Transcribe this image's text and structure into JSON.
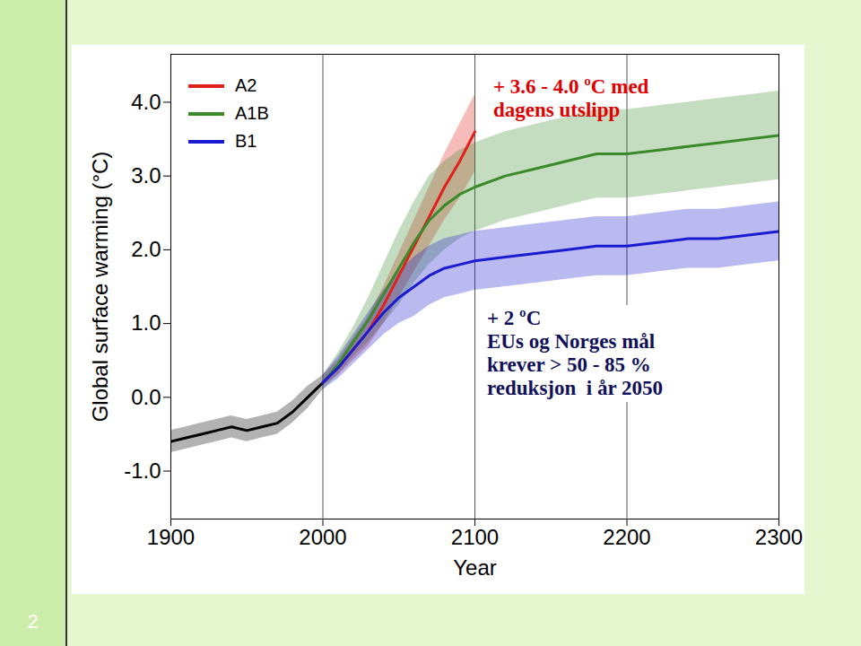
{
  "chart_data": {
    "type": "line",
    "x_label": "Year",
    "y_label": "Global surface warming (°C)",
    "xlim": [
      1900,
      2300
    ],
    "xticks": [
      1900,
      2000,
      2100,
      2200,
      2300
    ],
    "ylim": [
      -1.65,
      4.65
    ],
    "yticks": [
      {
        "value": -1,
        "label": "-1.0"
      },
      {
        "value": 0,
        "label": "0.0"
      },
      {
        "value": 1,
        "label": "1.0"
      },
      {
        "value": 2,
        "label": "2.0"
      },
      {
        "value": 3,
        "label": "3.0"
      },
      {
        "value": 4,
        "label": "4.0"
      }
    ],
    "reference_lines_x": [
      2000,
      2100,
      2200
    ],
    "legend": "top-left",
    "series": [
      {
        "color": "#000000",
        "x": [
          1900,
          1910,
          1920,
          1930,
          1940,
          1950,
          1960,
          1970,
          1980,
          1990,
          2000
        ],
        "values": [
          -0.6,
          -0.55,
          -0.5,
          -0.45,
          -0.4,
          -0.45,
          -0.4,
          -0.35,
          -0.2,
          0.0,
          0.2
        ],
        "lower": [
          -0.75,
          -0.7,
          -0.65,
          -0.6,
          -0.55,
          -0.6,
          -0.55,
          -0.5,
          -0.35,
          -0.15,
          0.1
        ],
        "upper": [
          -0.45,
          -0.4,
          -0.35,
          -0.3,
          -0.25,
          -0.3,
          -0.25,
          -0.2,
          -0.05,
          0.15,
          0.3
        ]
      },
      {
        "name": "A2",
        "color": "#e0201a",
        "x": [
          2000,
          2010,
          2020,
          2030,
          2040,
          2050,
          2060,
          2070,
          2080,
          2090,
          2100
        ],
        "values": [
          0.2,
          0.4,
          0.65,
          0.9,
          1.25,
          1.65,
          2.05,
          2.45,
          2.85,
          3.2,
          3.6
        ],
        "lower": [
          0.15,
          0.3,
          0.5,
          0.7,
          1.0,
          1.35,
          1.7,
          2.05,
          2.4,
          2.7,
          3.05
        ],
        "upper": [
          0.3,
          0.5,
          0.8,
          1.1,
          1.5,
          1.95,
          2.4,
          2.85,
          3.3,
          3.7,
          4.1
        ]
      },
      {
        "name": "A1B",
        "color": "#3a8a2a",
        "x": [
          2000,
          2010,
          2020,
          2030,
          2040,
          2050,
          2060,
          2070,
          2080,
          2090,
          2100,
          2120,
          2140,
          2160,
          2180,
          2200,
          2220,
          2240,
          2260,
          2280,
          2300
        ],
        "values": [
          0.2,
          0.45,
          0.75,
          1.05,
          1.4,
          1.75,
          2.1,
          2.4,
          2.6,
          2.75,
          2.85,
          3.0,
          3.1,
          3.2,
          3.3,
          3.3,
          3.35,
          3.4,
          3.45,
          3.5,
          3.55
        ],
        "lower": [
          0.1,
          0.3,
          0.55,
          0.75,
          1.0,
          1.25,
          1.55,
          1.8,
          2.0,
          2.15,
          2.25,
          2.4,
          2.5,
          2.6,
          2.7,
          2.7,
          2.75,
          2.8,
          2.85,
          2.9,
          2.95
        ],
        "upper": [
          0.3,
          0.6,
          0.95,
          1.35,
          1.8,
          2.25,
          2.65,
          3.0,
          3.2,
          3.35,
          3.45,
          3.6,
          3.7,
          3.8,
          3.9,
          3.9,
          3.95,
          4.0,
          4.05,
          4.1,
          4.15
        ]
      },
      {
        "name": "B1",
        "color": "#1a1ad0",
        "x": [
          2000,
          2010,
          2020,
          2030,
          2040,
          2050,
          2060,
          2070,
          2080,
          2090,
          2100,
          2120,
          2140,
          2160,
          2180,
          2200,
          2220,
          2240,
          2260,
          2280,
          2300
        ],
        "values": [
          0.2,
          0.4,
          0.65,
          0.9,
          1.15,
          1.35,
          1.5,
          1.65,
          1.75,
          1.8,
          1.85,
          1.9,
          1.95,
          2.0,
          2.05,
          2.05,
          2.1,
          2.15,
          2.15,
          2.2,
          2.25
        ],
        "lower": [
          0.1,
          0.25,
          0.45,
          0.65,
          0.85,
          1.0,
          1.1,
          1.25,
          1.35,
          1.4,
          1.45,
          1.5,
          1.55,
          1.6,
          1.65,
          1.65,
          1.7,
          1.75,
          1.75,
          1.8,
          1.85
        ],
        "upper": [
          0.3,
          0.55,
          0.85,
          1.15,
          1.45,
          1.7,
          1.9,
          2.05,
          2.15,
          2.2,
          2.25,
          2.3,
          2.35,
          2.4,
          2.45,
          2.45,
          2.5,
          2.55,
          2.55,
          2.6,
          2.65
        ]
      }
    ],
    "annotations": [
      {
        "text": [
          "+ 3.6 - 4.0 ºC med",
          "dagens utslipp"
        ],
        "color": "#e00000"
      },
      {
        "text": [
          "+ 2 ºC",
          "EUs og Norges mål",
          "krever > 50 - 85 %",
          "reduksjon  i år 2050"
        ],
        "color": "#10105a"
      }
    ]
  },
  "slide": {
    "number": "2"
  }
}
